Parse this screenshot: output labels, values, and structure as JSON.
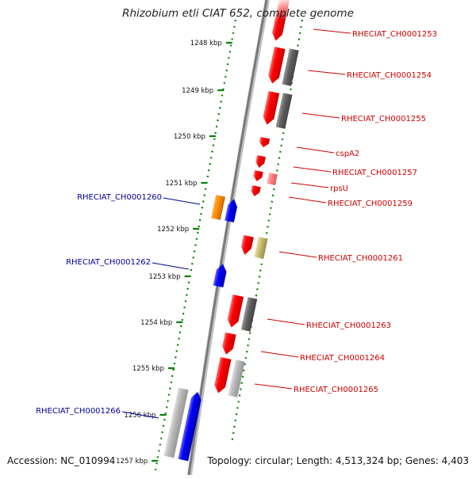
{
  "title": "Rhizobium etli CIAT 652, complete genome",
  "accession": "Accession: NC_010994",
  "topology": "Topology: circular; Length: 4,513,324 bp; Genes: 4,403",
  "colors": {
    "forward_gene": "#ff0000",
    "reverse_gene": "#0000ff",
    "forward_label": "#cc0000",
    "reverse_label": "#000099",
    "hypothetical": "#606060",
    "ruler": "#008000"
  },
  "ruler_ticks": [
    {
      "kbp": 1248,
      "label": "1248 kbp"
    },
    {
      "kbp": 1249,
      "label": "1249 kbp"
    },
    {
      "kbp": 1250,
      "label": "1250 kbp"
    },
    {
      "kbp": 1251,
      "label": "1251 kbp"
    },
    {
      "kbp": 1252,
      "label": "1252 kbp"
    },
    {
      "kbp": 1253,
      "label": "1253 kbp"
    },
    {
      "kbp": 1254,
      "label": "1254 kbp"
    },
    {
      "kbp": 1255,
      "label": "1255 kbp"
    },
    {
      "kbp": 1256,
      "label": "1256 kbp"
    },
    {
      "kbp": 1257,
      "label": "1257 kbp"
    }
  ],
  "genes": [
    {
      "label": "RHECIAT_CH0001253",
      "strand": "+"
    },
    {
      "label": "RHECIAT_CH0001254",
      "strand": "+"
    },
    {
      "label": "RHECIAT_CH0001255",
      "strand": "+"
    },
    {
      "label": "cspA2",
      "strand": "+"
    },
    {
      "label": "RHECIAT_CH0001257",
      "strand": "+"
    },
    {
      "label": "rpsU",
      "strand": "+"
    },
    {
      "label": "RHECIAT_CH0001259",
      "strand": "+"
    },
    {
      "label": "RHECIAT_CH0001260",
      "strand": "-"
    },
    {
      "label": "RHECIAT_CH0001261",
      "strand": "+"
    },
    {
      "label": "RHECIAT_CH0001262",
      "strand": "-"
    },
    {
      "label": "RHECIAT_CH0001263",
      "strand": "+"
    },
    {
      "label": "RHECIAT_CH0001264",
      "strand": "+"
    },
    {
      "label": "RHECIAT_CH0001265",
      "strand": "+"
    },
    {
      "label": "RHECIAT_CH0001266",
      "strand": "-"
    }
  ]
}
